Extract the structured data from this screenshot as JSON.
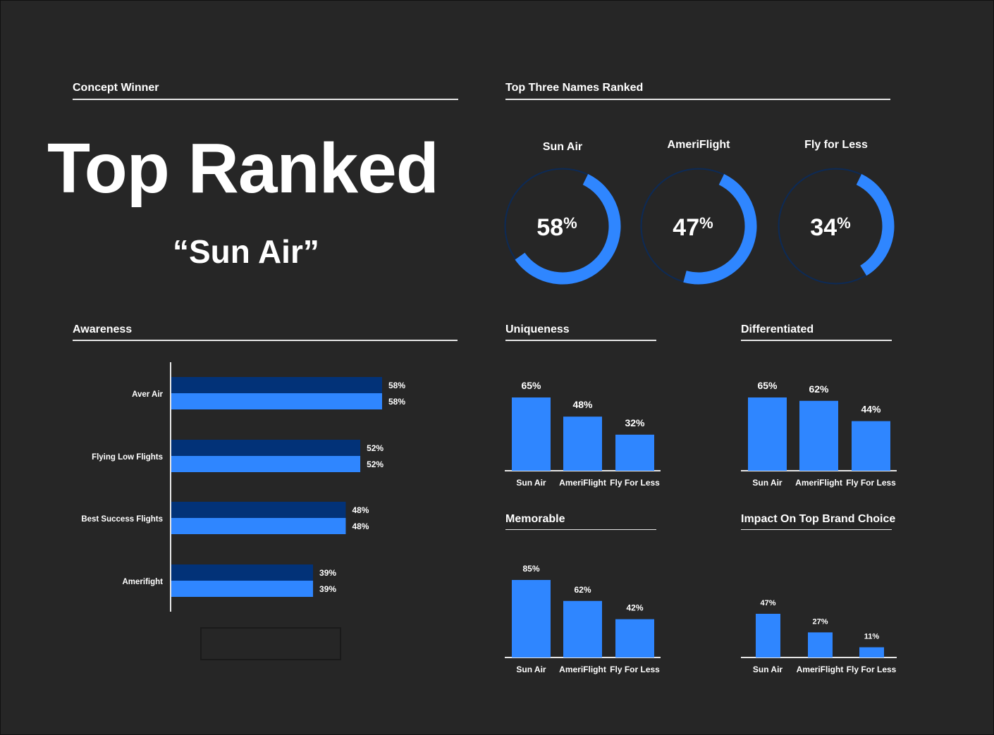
{
  "colors": {
    "background": "#262626",
    "bright_blue": "#2f86ff",
    "dark_blue": "#023278",
    "ring_track": "#0d2a55",
    "text": "#ffffff",
    "rule": "#e6e6e6"
  },
  "concept": {
    "title": "Concept  Winner",
    "headline": "Top Ranked",
    "winner": "“Sun Air”"
  },
  "top_three": {
    "title": "Top Three Names Ranked"
  },
  "awareness": {
    "title": "Awareness"
  },
  "uniqueness": {
    "title": "Uniqueness"
  },
  "differentiated": {
    "title": "Differentiated"
  },
  "memorable": {
    "title": "Memorable"
  },
  "impact": {
    "title": "Impact On Top Brand Choice"
  },
  "chart_data": [
    {
      "id": "top_three",
      "type": "donut",
      "title": "Top Three Names Ranked",
      "categories": [
        "Sun Air",
        "AmeriFlight",
        "Fly for Less"
      ],
      "values": [
        58,
        47,
        34
      ],
      "unit": "%"
    },
    {
      "id": "awareness",
      "type": "bar",
      "orientation": "horizontal",
      "title": "Awareness",
      "categories": [
        "Aver Air",
        "Flying Low Flights",
        "Best Success Flights",
        "Amerifight"
      ],
      "series": [
        {
          "values": [
            58,
            52,
            48,
            39
          ],
          "color": "#023278"
        },
        {
          "values": [
            58,
            52,
            48,
            39
          ],
          "color": "#2f86ff"
        }
      ],
      "unit": "%"
    },
    {
      "id": "uniqueness",
      "type": "bar",
      "title": "Uniqueness",
      "categories": [
        "Sun Air",
        "AmeriFlight",
        "Fly For Less"
      ],
      "values": [
        65,
        48,
        32
      ],
      "unit": "%"
    },
    {
      "id": "differentiated",
      "type": "bar",
      "title": "Differentiated",
      "categories": [
        "Sun Air",
        "AmeriFlight",
        "Fly For Less"
      ],
      "values": [
        65,
        62,
        44
      ],
      "unit": "%"
    },
    {
      "id": "memorable",
      "type": "bar",
      "title": "Memorable",
      "categories": [
        "Sun Air",
        "AmeriFlight",
        "Fly For Less"
      ],
      "values": [
        85,
        62,
        42
      ],
      "unit": "%"
    },
    {
      "id": "impact",
      "type": "bar",
      "title": "Impact On Top Brand Choice",
      "categories": [
        "Sun Air",
        "AmeriFlight",
        "Fly For Less"
      ],
      "values": [
        47,
        27,
        11
      ],
      "unit": "%"
    }
  ]
}
